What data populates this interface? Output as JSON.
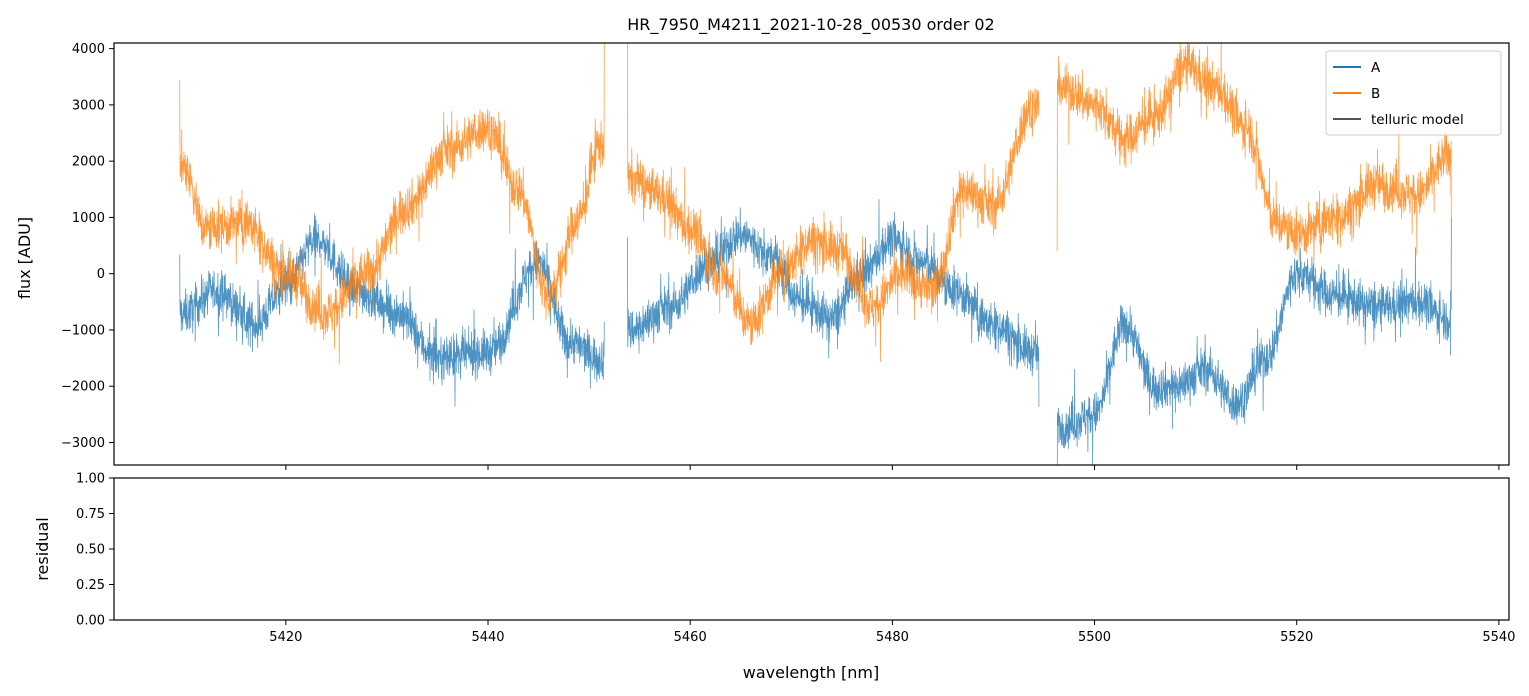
{
  "chart_data": [
    {
      "type": "line",
      "title": "HR_7950_M4211_2021-10-28_00530  order 02",
      "xlabel": "",
      "ylabel": "flux [ADU]",
      "xlim": [
        5403,
        5541
      ],
      "ylim": [
        -3400,
        4100
      ],
      "x_ticks": [
        5420,
        5440,
        5460,
        5480,
        5500,
        5520,
        5540
      ],
      "y_ticks": [
        -3000,
        -2000,
        -1000,
        0,
        1000,
        2000,
        3000,
        4000
      ],
      "y_tick_labels": [
        "−3000",
        "−2000",
        "−1000",
        "0",
        "1000",
        "2000",
        "3000",
        "4000"
      ],
      "grid": false,
      "legend_position": "top-right",
      "series": [
        {
          "name": "A",
          "color": "#1f77b4",
          "noise_amplitude": 350,
          "segments": [
            {
              "x_range": [
                5409.5,
                5451.5
              ],
              "x": [
                5410,
                5413,
                5417,
                5420,
                5423,
                5427,
                5431,
                5435,
                5440,
                5445,
                5448,
                5451
              ],
              "y": [
                -700,
                -300,
                -900,
                -200,
                600,
                -300,
                -700,
                -1500,
                -1400,
                200,
                -1200,
                -1500
              ]
            },
            {
              "x_range": [
                5453.8,
                5494.5
              ],
              "x": [
                5454,
                5458,
                5462,
                5465,
                5468,
                5471,
                5474,
                5477,
                5480,
                5483,
                5486,
                5490,
                5494
              ],
              "y": [
                -1000,
                -600,
                200,
                700,
                300,
                -500,
                -800,
                0,
                600,
                200,
                -300,
                -900,
                -1400
              ]
            },
            {
              "x_range": [
                5496.3,
                5535.3
              ],
              "x": [
                5497,
                5500,
                5503,
                5506,
                5508,
                5511,
                5514,
                5517,
                5520,
                5524,
                5528,
                5532,
                5535
              ],
              "y": [
                -2700,
                -2500,
                -900,
                -2000,
                -2000,
                -1700,
                -2300,
                -1500,
                0,
                -400,
                -600,
                -500,
                -800
              ]
            }
          ]
        },
        {
          "name": "B",
          "color": "#ff7f0e",
          "noise_amplitude": 380,
          "segments": [
            {
              "x_range": [
                5409.5,
                5451.5
              ],
              "x": [
                5410,
                5412,
                5416,
                5420,
                5424,
                5428,
                5432,
                5436,
                5440,
                5443,
                5446,
                5449,
                5451
              ],
              "y": [
                1900,
                800,
                900,
                0,
                -700,
                0,
                1200,
                2200,
                2600,
                1500,
                -400,
                1000,
                2300
              ]
            },
            {
              "x_range": [
                5453.8,
                5494.5
              ],
              "x": [
                5454,
                5457,
                5460,
                5463,
                5466,
                5469,
                5472,
                5475,
                5478,
                5481,
                5484,
                5487,
                5490,
                5494
              ],
              "y": [
                1700,
                1400,
                800,
                0,
                -900,
                0,
                600,
                400,
                -600,
                0,
                -300,
                1500,
                1200,
                3000
              ]
            },
            {
              "x_range": [
                5496.3,
                5535.3
              ],
              "x": [
                5497,
                5500,
                5503,
                5506,
                5509,
                5512,
                5515,
                5518,
                5520,
                5524,
                5528,
                5532,
                5535
              ],
              "y": [
                3300,
                3000,
                2400,
                2800,
                3700,
                3300,
                2600,
                900,
                700,
                1000,
                1600,
                1400,
                2100
              ]
            }
          ]
        },
        {
          "name": "telluric model",
          "color": "#555555",
          "segments": []
        }
      ]
    },
    {
      "type": "line",
      "title": "",
      "xlabel": "wavelength [nm]",
      "ylabel": "residual",
      "xlim": [
        5403,
        5541
      ],
      "ylim": [
        0,
        1
      ],
      "x_ticks": [
        5420,
        5440,
        5460,
        5480,
        5500,
        5520,
        5540
      ],
      "x_tick_labels": [
        "5420",
        "5440",
        "5460",
        "5480",
        "5500",
        "5520",
        "5540"
      ],
      "y_ticks": [
        0,
        0.25,
        0.5,
        0.75,
        1
      ],
      "y_tick_labels": [
        "0.00",
        "0.25",
        "0.50",
        "0.75",
        "1.00"
      ],
      "grid": false,
      "series": []
    }
  ]
}
